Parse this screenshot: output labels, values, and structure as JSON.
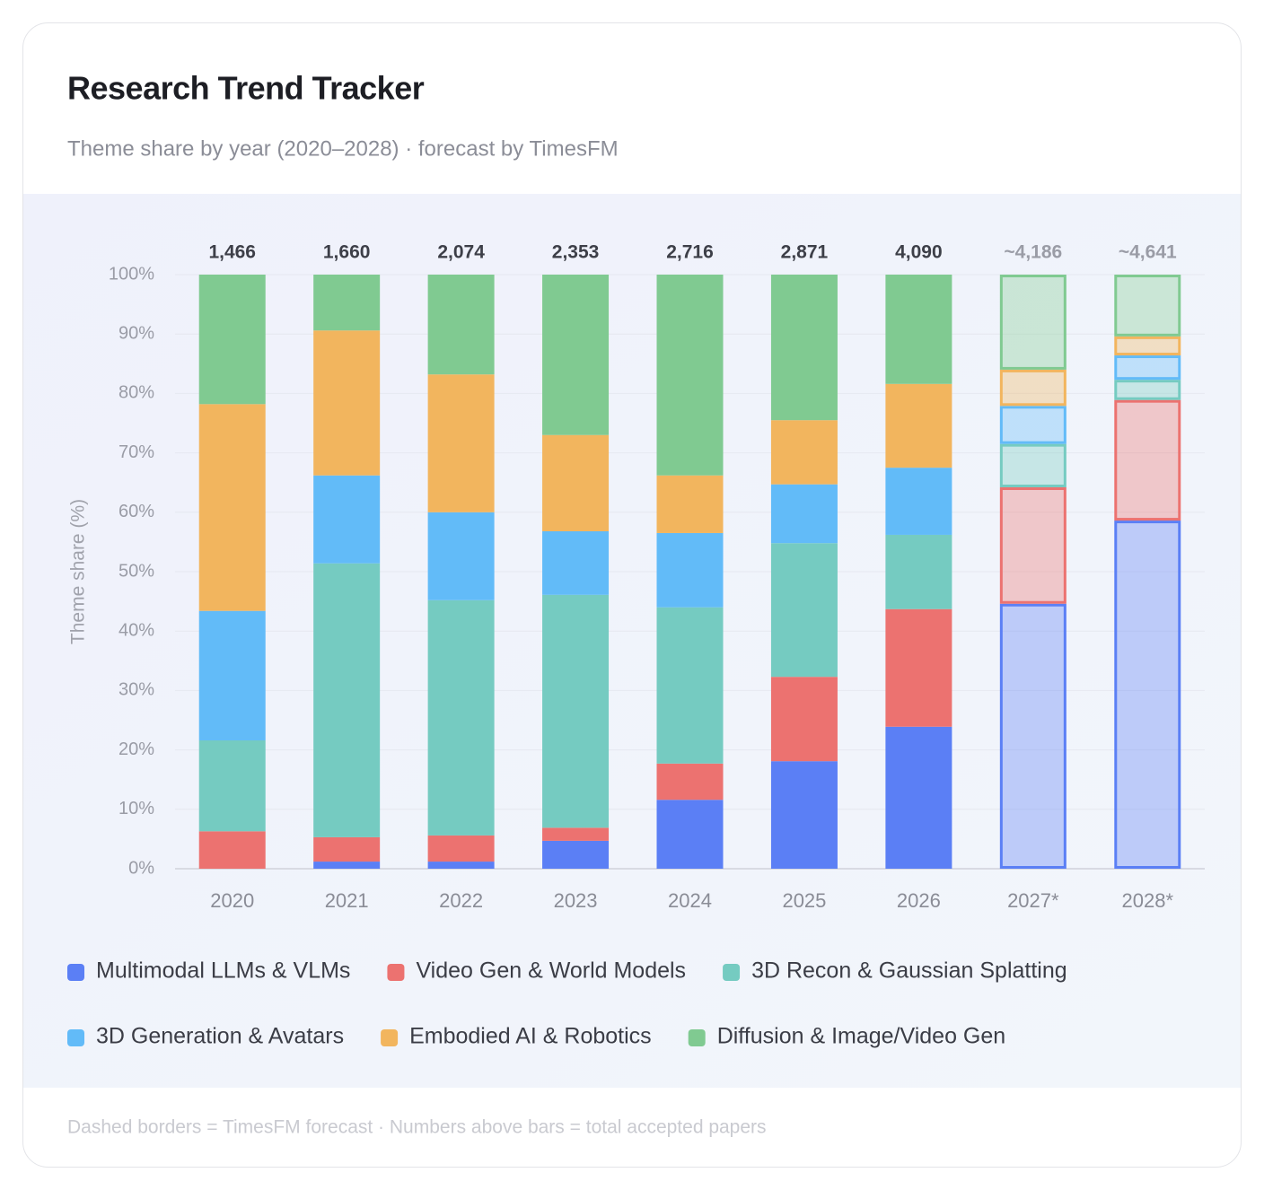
{
  "chart_data": {
    "type": "stacked_bar",
    "title": "Research Trend Tracker",
    "subtitle": "Theme share by year (2020–2028) · forecast by TimesFM",
    "ylabel": "Theme share (%)",
    "note": "Dashed borders = TimesFM forecast · Numbers above bars = total accepted papers",
    "categories": [
      "2020",
      "2021",
      "2022",
      "2023",
      "2024",
      "2025",
      "2026",
      "2027*",
      "2028*"
    ],
    "forecast": [
      false,
      false,
      false,
      false,
      false,
      false,
      false,
      true,
      true
    ],
    "totals": {
      "values": [
        1466,
        1660,
        2074,
        2353,
        2716,
        2871,
        4090,
        4186,
        4641
      ],
      "value_labels": [
        "1,466",
        "1,660",
        "2,074",
        "2,353",
        "2,716",
        "2,871",
        "4,090",
        "~4,186",
        "~4,641"
      ]
    },
    "series": [
      {
        "name": "Multimodal LLMs & VLMs",
        "color": "#5b7ff5",
        "values": [
          0,
          1.2,
          1.2,
          4.7,
          11.6,
          18.1,
          23.9,
          44.6,
          58.6
        ]
      },
      {
        "name": "Video Gen & World Models",
        "color": "#ec7270",
        "values": [
          6.3,
          4.1,
          4.4,
          2.2,
          6.1,
          14.2,
          19.8,
          19.6,
          20.3
        ]
      },
      {
        "name": "3D Recon & Gaussian Splatting",
        "color": "#75cbc1",
        "values": [
          15.3,
          46.1,
          39.6,
          39.2,
          26.3,
          22.5,
          12.5,
          7.3,
          3.4
        ]
      },
      {
        "name": "3D Generation & Avatars",
        "color": "#62bbf8",
        "values": [
          21.8,
          14.8,
          14.8,
          10.7,
          12.5,
          9.9,
          11.3,
          6.4,
          4.1
        ]
      },
      {
        "name": "Embodied AI & Robotics",
        "color": "#f2b55e",
        "values": [
          34.8,
          24.4,
          23.2,
          16.2,
          9.7,
          10.8,
          14.1,
          6.1,
          3.2
        ]
      },
      {
        "name": "Diffusion & Image/Video Gen",
        "color": "#80ca91",
        "values": [
          21.8,
          9.4,
          16.8,
          27.0,
          33.8,
          24.5,
          18.4,
          16.0,
          10.4
        ]
      }
    ],
    "ylim": [
      0,
      100
    ],
    "yticks": [
      {
        "value": 0,
        "label": "0%"
      },
      {
        "value": 10,
        "label": "10%"
      },
      {
        "value": 20,
        "label": "20%"
      },
      {
        "value": 30,
        "label": "30%"
      },
      {
        "value": 40,
        "label": "40%"
      },
      {
        "value": 50,
        "label": "50%"
      },
      {
        "value": 60,
        "label": "60%"
      },
      {
        "value": 70,
        "label": "70%"
      },
      {
        "value": 80,
        "label": "80%"
      },
      {
        "value": 90,
        "label": "90%"
      },
      {
        "value": 100,
        "label": "100%"
      }
    ],
    "grid": true
  }
}
